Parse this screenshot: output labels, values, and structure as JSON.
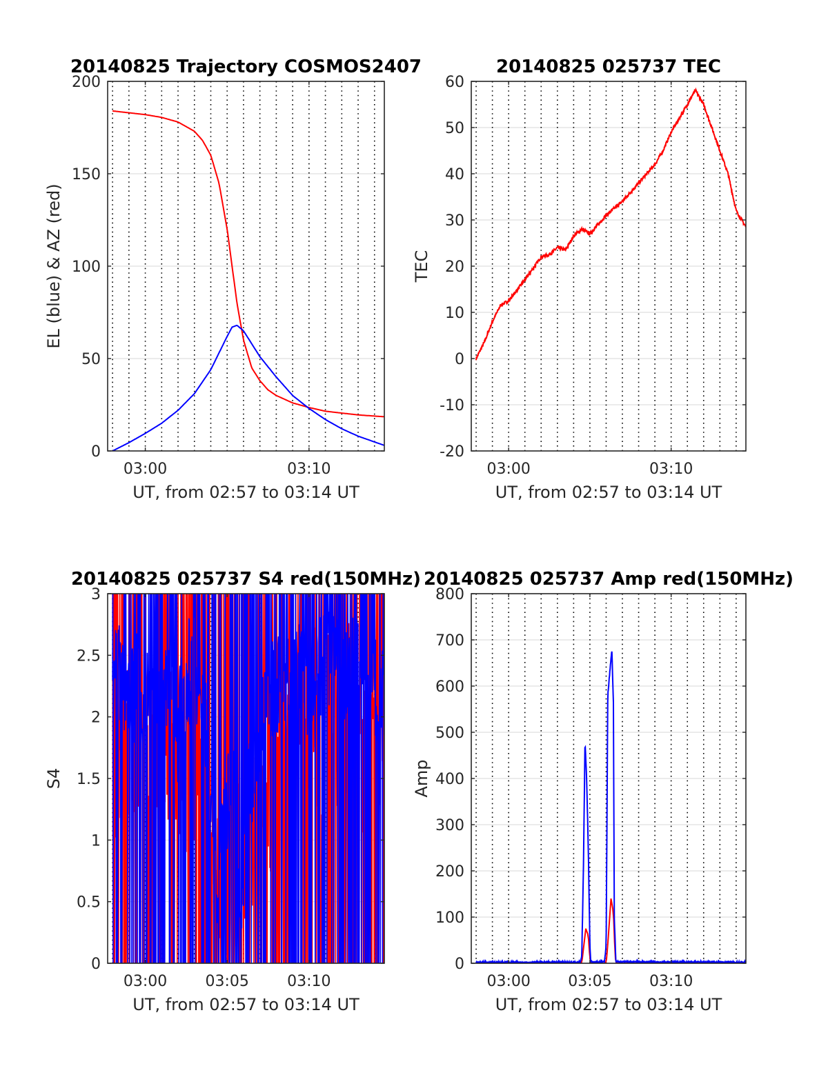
{
  "chart_data": [
    {
      "type": "line",
      "title": "20140825 Trajectory COSMOS2407",
      "xlabel": "UT, from 02:57 to 03:14 UT",
      "ylabel": "EL (blue) & AZ (red)",
      "xlim_minutes": [
        177.7,
        194.6
      ],
      "ylim": [
        0,
        200
      ],
      "xticks": [
        {
          "v": 180,
          "label": "03:00"
        },
        {
          "v": 190,
          "label": "03:10"
        }
      ],
      "yticks": [
        {
          "v": 0,
          "label": "0"
        },
        {
          "v": 50,
          "label": "50"
        },
        {
          "v": 100,
          "label": "100"
        },
        {
          "v": 150,
          "label": "150"
        },
        {
          "v": 200,
          "label": "200"
        }
      ],
      "grid": true,
      "series": [
        {
          "color": "#ff0000",
          "x": [
            178.0,
            179.0,
            180.0,
            181.0,
            182.0,
            183.0,
            183.5,
            184.0,
            184.5,
            185.0,
            185.3,
            185.6,
            186.0,
            186.5,
            187.0,
            187.5,
            188.0,
            189.0,
            190.0,
            191.0,
            192.0,
            193.0,
            194.6
          ],
          "y": [
            184,
            183,
            182,
            180.5,
            178,
            173,
            168,
            160,
            145,
            120,
            100,
            80,
            60,
            45,
            38,
            33,
            30,
            26,
            23.5,
            21.5,
            20.5,
            19.5,
            18.5
          ]
        },
        {
          "color": "#0000ff",
          "x": [
            178.0,
            179.0,
            180.0,
            181.0,
            182.0,
            183.0,
            184.0,
            184.5,
            185.0,
            185.3,
            185.6,
            186.0,
            186.5,
            187.0,
            188.0,
            189.0,
            190.0,
            191.0,
            192.0,
            193.0,
            194.6
          ],
          "y": [
            0,
            4.5,
            9.5,
            15,
            22,
            31,
            44,
            53,
            62,
            67,
            68,
            65,
            58,
            51,
            40,
            30,
            23,
            17,
            12,
            8,
            3
          ]
        }
      ]
    },
    {
      "type": "line",
      "title": "20140825 025737 TEC",
      "xlabel": "UT, from 02:57 to 03:14 UT",
      "ylabel": "TEC",
      "xlim_minutes": [
        177.7,
        194.6
      ],
      "ylim": [
        -20,
        60
      ],
      "xticks": [
        {
          "v": 180,
          "label": "03:00"
        },
        {
          "v": 190,
          "label": "03:10"
        }
      ],
      "yticks": [
        {
          "v": -20,
          "label": "-20"
        },
        {
          "v": -10,
          "label": "-10"
        },
        {
          "v": 0,
          "label": "0"
        },
        {
          "v": 10,
          "label": "10"
        },
        {
          "v": 20,
          "label": "20"
        },
        {
          "v": 30,
          "label": "30"
        },
        {
          "v": 40,
          "label": "40"
        },
        {
          "v": 50,
          "label": "50"
        },
        {
          "v": 60,
          "label": "60"
        }
      ],
      "grid": true,
      "series": [
        {
          "color": "#ff0000",
          "noise": 0.7,
          "x": [
            178.0,
            178.5,
            179.0,
            179.5,
            180.0,
            181.0,
            182.0,
            182.5,
            183.0,
            183.5,
            184.0,
            184.5,
            185.0,
            185.5,
            186.0,
            187.0,
            188.0,
            189.0,
            189.5,
            190.0,
            190.5,
            191.0,
            191.3,
            191.5,
            192.0,
            192.5,
            193.0,
            193.5,
            194.0,
            194.6
          ],
          "y": [
            0,
            3.5,
            8,
            11.5,
            12.5,
            17,
            22,
            22.5,
            24,
            23.5,
            26.5,
            28,
            27,
            29,
            31,
            34,
            38,
            42,
            45,
            49,
            52,
            55,
            57,
            58,
            55,
            50,
            45,
            40,
            32,
            28.5
          ]
        }
      ]
    },
    {
      "type": "line",
      "title": "20140825 025737 S4 red(150MHz)",
      "xlabel": "UT, from 02:57 to 03:14 UT",
      "ylabel": "S4",
      "xlim_minutes": [
        177.7,
        194.6
      ],
      "ylim": [
        0,
        3
      ],
      "xticks": [
        {
          "v": 180,
          "label": "03:00"
        },
        {
          "v": 185,
          "label": "03:05"
        },
        {
          "v": 190,
          "label": "03:10"
        }
      ],
      "yticks": [
        {
          "v": 0,
          "label": "0"
        },
        {
          "v": 0.5,
          "label": "0.5"
        },
        {
          "v": 1,
          "label": "1"
        },
        {
          "v": 1.5,
          "label": "1.5"
        },
        {
          "v": 2,
          "label": "2"
        },
        {
          "v": 2.5,
          "label": "2.5"
        },
        {
          "v": 3,
          "label": "3"
        }
      ],
      "grid": true,
      "series": [
        {
          "color": "#ff0000",
          "x": [
            178.0,
            178.5,
            179.0,
            179.5,
            180.0,
            180.5,
            181.0,
            181.5,
            182.0,
            182.5,
            183.0,
            183.5,
            184.0,
            184.3,
            184.6,
            185.0,
            185.3,
            185.6,
            185.9,
            186.2,
            186.5,
            187.0,
            187.5,
            188.0,
            189.0,
            190.0,
            191.0,
            192.0,
            193.0,
            194.0,
            194.6
          ],
          "y": [
            1.6,
            2.0,
            1.8,
            1.9,
            2.0,
            2.0,
            1.7,
            1.9,
            1.6,
            1.7,
            1.8,
            1.6,
            1.2,
            0.9,
            0.6,
            0.9,
            1.1,
            0.8,
            0.4,
            1.2,
            1.0,
            1.3,
            1.5,
            1.6,
            1.8,
            2.0,
            1.9,
            2.1,
            1.8,
            1.9,
            2.0
          ],
          "noise": 1.6
        },
        {
          "color": "#0000ff",
          "x": [
            178.0,
            178.5,
            179.0,
            179.5,
            180.0,
            180.5,
            181.0,
            181.5,
            182.0,
            182.5,
            183.0,
            183.5,
            183.8,
            184.1,
            184.4,
            184.7,
            185.0,
            185.3,
            185.6,
            185.9,
            186.2,
            186.5,
            186.8,
            187.0,
            187.5,
            188.0,
            189.0,
            190.0,
            191.0,
            192.0,
            193.0,
            194.0,
            194.6
          ],
          "y": [
            2.2,
            2.4,
            2.1,
            2.3,
            2.0,
            2.5,
            2.2,
            2.4,
            1.9,
            2.3,
            2.5,
            2.1,
            1.7,
            1.3,
            0.4,
            1.3,
            1.2,
            1.6,
            0.9,
            0.3,
            1.5,
            1.3,
            1.8,
            2.0,
            2.2,
            2.3,
            2.4,
            2.2,
            2.5,
            2.3,
            2.4,
            2.2,
            2.3
          ],
          "noise": 0.9
        }
      ]
    },
    {
      "type": "line",
      "title": "20140825 025737 Amp red(150MHz)",
      "xlabel": "UT, from 02:57 to 03:14 UT",
      "ylabel": "Amp",
      "xlim_minutes": [
        177.7,
        194.6
      ],
      "ylim": [
        0,
        800
      ],
      "xticks": [
        {
          "v": 180,
          "label": "03:00"
        },
        {
          "v": 185,
          "label": "03:05"
        },
        {
          "v": 190,
          "label": "03:10"
        }
      ],
      "yticks": [
        {
          "v": 0,
          "label": "0"
        },
        {
          "v": 100,
          "label": "100"
        },
        {
          "v": 200,
          "label": "200"
        },
        {
          "v": 300,
          "label": "300"
        },
        {
          "v": 400,
          "label": "400"
        },
        {
          "v": 500,
          "label": "500"
        },
        {
          "v": 600,
          "label": "600"
        },
        {
          "v": 700,
          "label": "700"
        },
        {
          "v": 800,
          "label": "800"
        }
      ],
      "grid": true,
      "series": [
        {
          "color": "#ff0000",
          "x": [
            178.0,
            184.5,
            184.6,
            184.75,
            184.9,
            185.0,
            185.05,
            185.1,
            186.0,
            186.1,
            186.3,
            186.45,
            186.55,
            186.6,
            194.6
          ],
          "y": [
            0,
            0,
            30,
            75,
            60,
            10,
            0,
            0,
            0,
            40,
            140,
            110,
            20,
            0,
            0
          ]
        },
        {
          "color": "#0000ff",
          "x": [
            178.0,
            184.4,
            184.5,
            184.6,
            184.7,
            184.8,
            184.9,
            185.0,
            185.05,
            185.2,
            185.9,
            186.0,
            186.1,
            186.25,
            186.35,
            186.45,
            186.5,
            186.6,
            194.6
          ],
          "y": [
            2,
            2,
            15,
            200,
            480,
            400,
            250,
            40,
            5,
            3,
            3,
            40,
            580,
            640,
            680,
            560,
            100,
            3,
            2
          ],
          "noise": 4
        }
      ]
    }
  ]
}
